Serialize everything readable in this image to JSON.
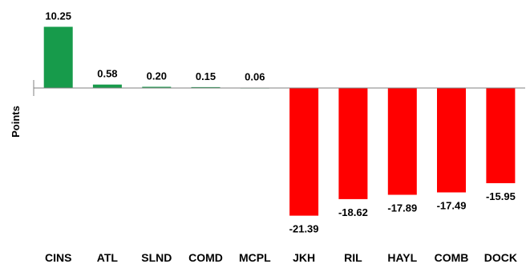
{
  "chart_data": {
    "type": "bar",
    "title": "",
    "xlabel": "",
    "ylabel": "Points",
    "categories": [
      "CINS",
      "ATL",
      "SLND",
      "COMD",
      "MCPL",
      "JKH",
      "RIL",
      "HAYL",
      "COMB",
      "DOCK"
    ],
    "values": [
      10.25,
      0.58,
      0.2,
      0.15,
      0.06,
      -21.39,
      -18.62,
      -17.89,
      -17.49,
      -15.95
    ],
    "value_labels": [
      "10.25",
      "0.58",
      "0.20",
      "0.15",
      "0.06",
      "-21.39",
      "-18.62",
      "-17.89",
      "-17.49",
      "-15.95"
    ],
    "ylim": [
      -22,
      11
    ],
    "grid": false,
    "legend": "none",
    "colors": {
      "positive": "#179B4B",
      "negative": "#FF0000",
      "axis": "#808080"
    }
  }
}
